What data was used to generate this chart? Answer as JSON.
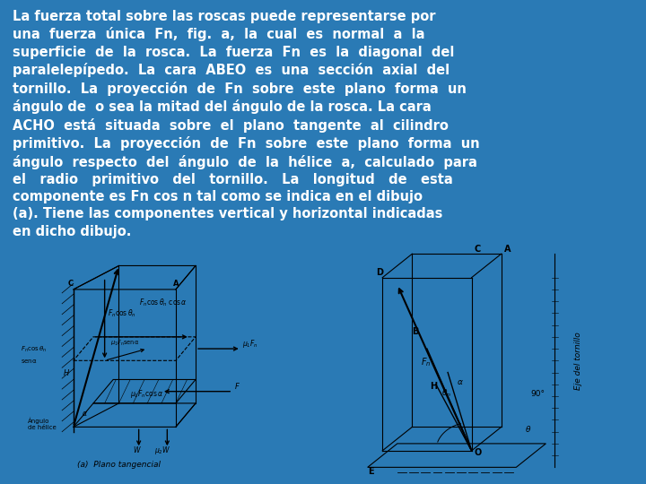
{
  "background_color": "#2a7ab5",
  "white_color": "#ffffff",
  "black_color": "#000000",
  "title_text": "La fuerza total sobre las roscas puede representarse por\nuna  fuerza  única  Fn,  fig.  a,  la  cual  es  normal  a  la\nsuperficie  de  la  rosca.  La  fuerza  Fn  es  la  diagonal  del\nparalelepípedo.  La  cara  ABEO  es  una  sección  axial  del\ntornillo.  La  proyección  de  Fn  sobre  este  plano  forma  un\nángulo de  o sea la mitad del ángulo de la rosca. La cara\nACHO  está  situada  sobre  el  plano  tangente  al  cilindro\nprimitivo.  La  proyección  de  Fn  sobre  este  plano  forma  un\nángulo  respecto  del  ángulo  de  la  hélice  a,  calculado  para\nel   radio   primitivo   del   tornillo.   La   longitud   de   esta\ncomponente es Fn cos n tal como se indica en el dibujo\n(a). Tiene las componentes vertical y horizontal indicadas\nen dicho dibujo.",
  "font_size": 10.5
}
